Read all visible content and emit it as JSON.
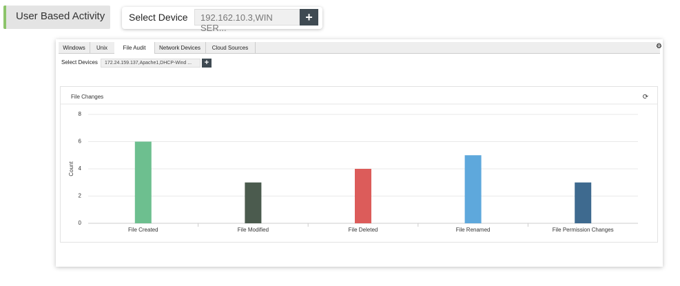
{
  "header": {
    "button": "User Based Activity",
    "select_label": "Select Device",
    "select_value": "192.162.10.3,WIN SER..."
  },
  "tabs": [
    "Windows",
    "Unix",
    "File Audit",
    "Network Devices",
    "Cloud Sources"
  ],
  "active_tab": 2,
  "devices": {
    "label": "Select Devices",
    "value": "172.24.159.137,Apache1,DHCP-Wind ..."
  },
  "chart_data": {
    "type": "bar",
    "title": "File Changes",
    "y_label": "Count",
    "categories": [
      "File Created",
      "File Modified",
      "File Deleted",
      "File Renamed",
      "File Permission Changes"
    ],
    "values": [
      6,
      3,
      4,
      5,
      3
    ],
    "colors": [
      "#6dbf8f",
      "#4b5b4e",
      "#dc5c5a",
      "#5ea8dc",
      "#3e6a8f"
    ],
    "ylim": [
      0,
      8
    ],
    "yticks": [
      0,
      2,
      4,
      6,
      8
    ],
    "grid": true
  }
}
